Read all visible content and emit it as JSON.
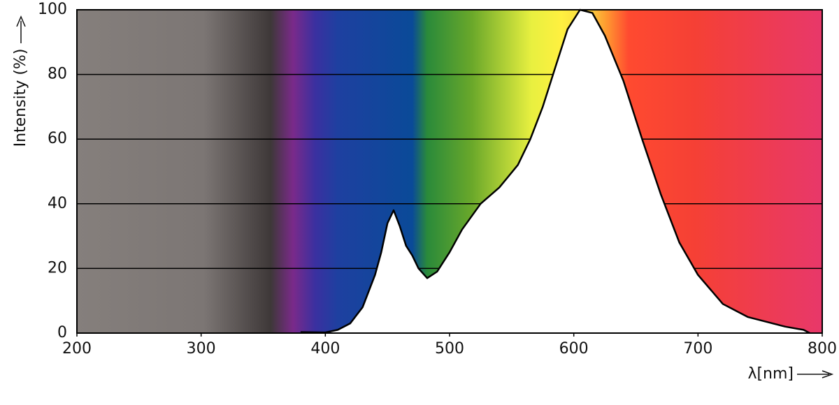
{
  "chart_data": {
    "type": "area",
    "x_label": "λ[nm]",
    "y_label": "Intensity (%)",
    "x": [
      380,
      400,
      410,
      420,
      430,
      440,
      445,
      450,
      455,
      460,
      465,
      470,
      475,
      482,
      490,
      500,
      510,
      525,
      540,
      555,
      565,
      575,
      585,
      595,
      605,
      615,
      625,
      640,
      655,
      670,
      685,
      700,
      720,
      740,
      770,
      785,
      790
    ],
    "values": [
      0.3,
      0.2,
      1,
      3,
      8,
      18,
      25,
      34,
      38,
      33,
      27,
      24,
      20,
      17,
      19,
      25,
      32,
      40,
      45,
      52,
      60,
      70,
      82,
      94,
      100,
      99,
      92,
      78,
      60,
      43,
      28,
      18,
      9,
      5,
      2,
      1,
      0
    ],
    "color": "#000000",
    "fill": "#ffffff",
    "xlim": [
      200,
      800
    ],
    "xticks": [
      200,
      300,
      400,
      500,
      600,
      700,
      800
    ],
    "ylim": [
      0,
      100
    ],
    "yticks": [
      0,
      20,
      40,
      60,
      80,
      100
    ],
    "grid": true
  }
}
